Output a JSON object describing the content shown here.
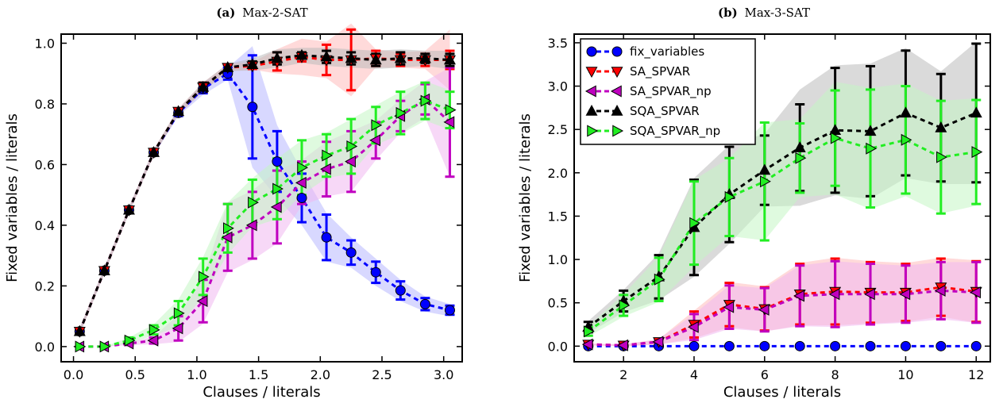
{
  "chart_data": [
    {
      "type": "line",
      "title_prefix": "(a)",
      "title": "Max-2-SAT",
      "xlabel": "Clauses / literals",
      "ylabel": "Fixed variables / literals",
      "xlim": [
        -0.1,
        3.15
      ],
      "ylim": [
        -0.05,
        1.03
      ],
      "xticks": [
        0.0,
        0.5,
        1.0,
        1.5,
        2.0,
        2.5,
        3.0
      ],
      "xtick_labels": [
        "0.0",
        "0.5",
        "1.0",
        "1.5",
        "2.0",
        "2.5",
        "3.0"
      ],
      "yticks": [
        0.0,
        0.2,
        0.4,
        0.6,
        0.8,
        1.0
      ],
      "ytick_labels": [
        "0.0",
        "0.2",
        "0.4",
        "0.6",
        "0.8",
        "1.0"
      ],
      "legend": null,
      "x": [
        0.05,
        0.25,
        0.45,
        0.65,
        0.85,
        1.05,
        1.25,
        1.45,
        1.65,
        1.85,
        2.05,
        2.25,
        2.45,
        2.65,
        2.85,
        3.05
      ],
      "series": [
        {
          "name": "fix_variables",
          "color": "#0000ff",
          "marker": "circle",
          "values": [
            0.05,
            0.25,
            0.45,
            0.64,
            0.77,
            0.85,
            0.9,
            0.79,
            0.61,
            0.49,
            0.36,
            0.31,
            0.245,
            0.185,
            0.14,
            0.12
          ],
          "err": [
            0.01,
            0.01,
            0.01,
            0.01,
            0.01,
            0.015,
            0.02,
            0.17,
            0.1,
            0.08,
            0.075,
            0.04,
            0.035,
            0.03,
            0.02,
            0.015
          ],
          "band": [
            0.01,
            0.01,
            0.01,
            0.01,
            0.01,
            0.02,
            0.02,
            0.2,
            0.12,
            0.09,
            0.08,
            0.05,
            0.045,
            0.035,
            0.025,
            0.02
          ],
          "band_color": "#b8b8ff"
        },
        {
          "name": "SA_SPVAR",
          "color": "#ff0000",
          "marker": "tri-down",
          "values": [
            0.05,
            0.25,
            0.45,
            0.64,
            0.775,
            0.855,
            0.92,
            0.925,
            0.94,
            0.955,
            0.945,
            0.945,
            0.95,
            0.945,
            0.945,
            0.945
          ],
          "err": [
            0.01,
            0.01,
            0.01,
            0.01,
            0.01,
            0.015,
            0.01,
            0.01,
            0.03,
            0.015,
            0.05,
            0.1,
            0.025,
            0.02,
            0.02,
            0.03
          ],
          "band": [
            0.01,
            0.01,
            0.01,
            0.01,
            0.01,
            0.015,
            0.012,
            0.012,
            0.04,
            0.06,
            0.06,
            0.12,
            0.03,
            0.025,
            0.03,
            0.1
          ],
          "band_color": "#ffbbbb"
        },
        {
          "name": "SA_SPVAR_np",
          "color": "#c000c0",
          "marker": "tri-left",
          "values": [
            0.0,
            0.0,
            0.01,
            0.02,
            0.06,
            0.15,
            0.36,
            0.4,
            0.46,
            0.54,
            0.585,
            0.61,
            0.68,
            0.76,
            0.815,
            0.74
          ],
          "err": [
            0.0,
            0.0,
            0.005,
            0.01,
            0.04,
            0.07,
            0.11,
            0.11,
            0.12,
            0.07,
            0.09,
            0.1,
            0.06,
            0.05,
            0.05,
            0.18
          ],
          "band": [
            0.0,
            0.0,
            0.005,
            0.012,
            0.045,
            0.075,
            0.115,
            0.115,
            0.12,
            0.075,
            0.09,
            0.1,
            0.065,
            0.055,
            0.06,
            0.18
          ],
          "band_color": "#f0b8f0"
        },
        {
          "name": "SQA_SPVAR",
          "color": "#000000",
          "marker": "tri-up",
          "values": [
            0.05,
            0.25,
            0.45,
            0.64,
            0.775,
            0.855,
            0.92,
            0.93,
            0.95,
            0.96,
            0.955,
            0.95,
            0.945,
            0.95,
            0.95,
            0.945
          ],
          "err": [
            0.01,
            0.01,
            0.01,
            0.01,
            0.01,
            0.015,
            0.01,
            0.01,
            0.02,
            0.01,
            0.02,
            0.02,
            0.02,
            0.02,
            0.015,
            0.02
          ],
          "band": [
            0.01,
            0.01,
            0.01,
            0.01,
            0.01,
            0.015,
            0.012,
            0.02,
            0.03,
            0.025,
            0.03,
            0.03,
            0.03,
            0.03,
            0.025,
            0.03
          ],
          "band_color": "#bbbbbb"
        },
        {
          "name": "SQA_SPVAR_np",
          "color": "#22ee22",
          "marker": "tri-right",
          "values": [
            0.0,
            0.0,
            0.02,
            0.055,
            0.11,
            0.23,
            0.39,
            0.475,
            0.52,
            0.59,
            0.63,
            0.66,
            0.73,
            0.77,
            0.81,
            0.78
          ],
          "err": [
            0.0,
            0.0,
            0.01,
            0.015,
            0.04,
            0.06,
            0.08,
            0.075,
            0.1,
            0.09,
            0.07,
            0.09,
            0.06,
            0.07,
            0.06,
            0.06
          ],
          "band": [
            0.0,
            0.0,
            0.01,
            0.018,
            0.045,
            0.065,
            0.085,
            0.08,
            0.1,
            0.09,
            0.075,
            0.09,
            0.065,
            0.07,
            0.065,
            0.065
          ],
          "band_color": "#c4f5c4"
        }
      ]
    },
    {
      "type": "line",
      "title_prefix": "(b)",
      "title": "Max-3-SAT",
      "xlabel": "Clauses / literals",
      "ylabel": "Fixed variables / literals",
      "xlim": [
        0.6,
        12.4
      ],
      "ylim": [
        -0.18,
        3.6
      ],
      "xticks": [
        2,
        4,
        6,
        8,
        10,
        12
      ],
      "xtick_labels": [
        "2",
        "4",
        "6",
        "8",
        "10",
        "12"
      ],
      "yticks": [
        0.0,
        0.5,
        1.0,
        1.5,
        2.0,
        2.5,
        3.0,
        3.5
      ],
      "ytick_labels": [
        "0.0",
        "0.5",
        "1.0",
        "1.5",
        "2.0",
        "2.5",
        "3.0",
        "3.5"
      ],
      "legend": {
        "position": "top-left",
        "entries": [
          "fix_variables",
          "SA_SPVAR",
          "SA_SPVAR_np",
          "SQA_SPVAR",
          "SQA_SPVAR_np"
        ]
      },
      "x": [
        1,
        2,
        3,
        4,
        5,
        6,
        7,
        8,
        9,
        10,
        11,
        12
      ],
      "series": [
        {
          "name": "fix_variables",
          "color": "#0000ff",
          "marker": "circle",
          "values": [
            0.0,
            0.0,
            0.0,
            0.0,
            0.0,
            0.0,
            0.0,
            0.0,
            0.0,
            0.0,
            0.0,
            0.0
          ],
          "err": [
            0,
            0,
            0,
            0,
            0,
            0,
            0,
            0,
            0,
            0,
            0,
            0
          ],
          "band": [
            0,
            0,
            0,
            0,
            0,
            0,
            0,
            0,
            0,
            0,
            0,
            0
          ],
          "band_color": "#b8b8ff"
        },
        {
          "name": "SA_SPVAR",
          "color": "#ff0000",
          "marker": "tri-down",
          "values": [
            0.02,
            0.01,
            0.05,
            0.25,
            0.48,
            0.43,
            0.6,
            0.63,
            0.62,
            0.62,
            0.68,
            0.63
          ],
          "err": [
            0.01,
            0.01,
            0.03,
            0.15,
            0.25,
            0.25,
            0.35,
            0.38,
            0.35,
            0.33,
            0.33,
            0.35
          ],
          "band": [
            0.01,
            0.01,
            0.03,
            0.16,
            0.26,
            0.26,
            0.36,
            0.39,
            0.36,
            0.34,
            0.34,
            0.36
          ],
          "band_color": "#ffbbbb"
        },
        {
          "name": "SA_SPVAR_np",
          "color": "#c000c0",
          "marker": "tri-left",
          "values": [
            0.02,
            0.01,
            0.05,
            0.22,
            0.45,
            0.42,
            0.58,
            0.6,
            0.6,
            0.6,
            0.64,
            0.62
          ],
          "err": [
            0.01,
            0.01,
            0.03,
            0.15,
            0.25,
            0.25,
            0.35,
            0.38,
            0.35,
            0.33,
            0.33,
            0.35
          ],
          "band": [
            0.01,
            0.01,
            0.03,
            0.15,
            0.25,
            0.25,
            0.35,
            0.38,
            0.35,
            0.33,
            0.33,
            0.35
          ],
          "band_color": "#f0b8f0"
        },
        {
          "name": "SQA_SPVAR",
          "color": "#000000",
          "marker": "tri-up",
          "values": [
            0.22,
            0.52,
            0.8,
            1.37,
            1.75,
            2.03,
            2.29,
            2.49,
            2.48,
            2.69,
            2.52,
            2.69
          ],
          "err": [
            0.06,
            0.12,
            0.25,
            0.55,
            0.55,
            0.4,
            0.5,
            0.72,
            0.75,
            0.72,
            0.62,
            0.8
          ],
          "band": [
            0.07,
            0.13,
            0.27,
            0.57,
            0.57,
            0.42,
            0.67,
            0.75,
            0.78,
            0.75,
            0.65,
            0.82
          ],
          "band_color": "#bbbbbb"
        },
        {
          "name": "SQA_SPVAR_np",
          "color": "#22ee22",
          "marker": "tri-right",
          "values": [
            0.17,
            0.47,
            0.77,
            1.42,
            1.72,
            1.9,
            2.17,
            2.4,
            2.28,
            2.38,
            2.18,
            2.24
          ],
          "err": [
            0.05,
            0.12,
            0.25,
            0.48,
            0.45,
            0.68,
            0.4,
            0.55,
            0.68,
            0.62,
            0.65,
            0.6
          ],
          "band": [
            0.06,
            0.13,
            0.26,
            0.5,
            0.45,
            0.68,
            0.45,
            0.65,
            0.7,
            0.65,
            0.65,
            0.62
          ],
          "band_color": "#c4f5c4"
        }
      ]
    }
  ]
}
